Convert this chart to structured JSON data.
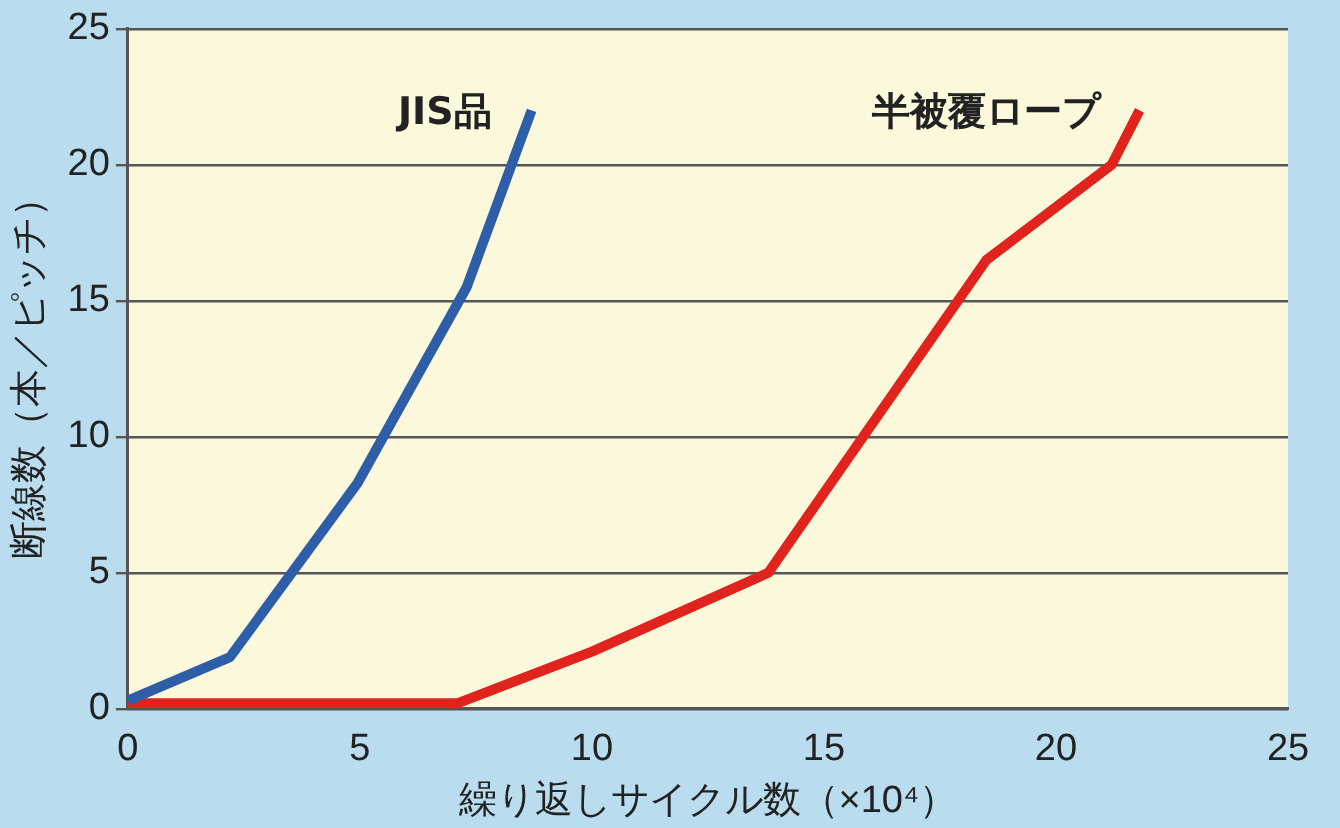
{
  "chart_data": {
    "type": "line",
    "xlabel": "繰り返しサイクル数（×10⁴）",
    "ylabel": "断線数（本／ピッチ）",
    "series": [
      {
        "name": "JIS品",
        "color": "#2f5ea8",
        "x": [
          0,
          2.2,
          4.95,
          7.3,
          8.7
        ],
        "values": [
          0.3,
          1.9,
          8.3,
          15.5,
          22
        ]
      },
      {
        "name": "半被覆ロープ",
        "color": "#e0231c",
        "x": [
          0,
          7.1,
          10,
          13.8,
          18.5,
          21.2,
          21.8
        ],
        "values": [
          0.2,
          0.2,
          2.1,
          5,
          16.5,
          20,
          22
        ]
      }
    ],
    "xlim": [
      0,
      25
    ],
    "xticks": [
      0,
      5,
      10,
      15,
      20,
      25
    ],
    "ylim": [
      0,
      25
    ],
    "yticks": [
      0,
      5,
      10,
      15,
      20,
      25
    ],
    "grid": "y",
    "legend": false,
    "marker": "none",
    "line_style": "solid"
  }
}
